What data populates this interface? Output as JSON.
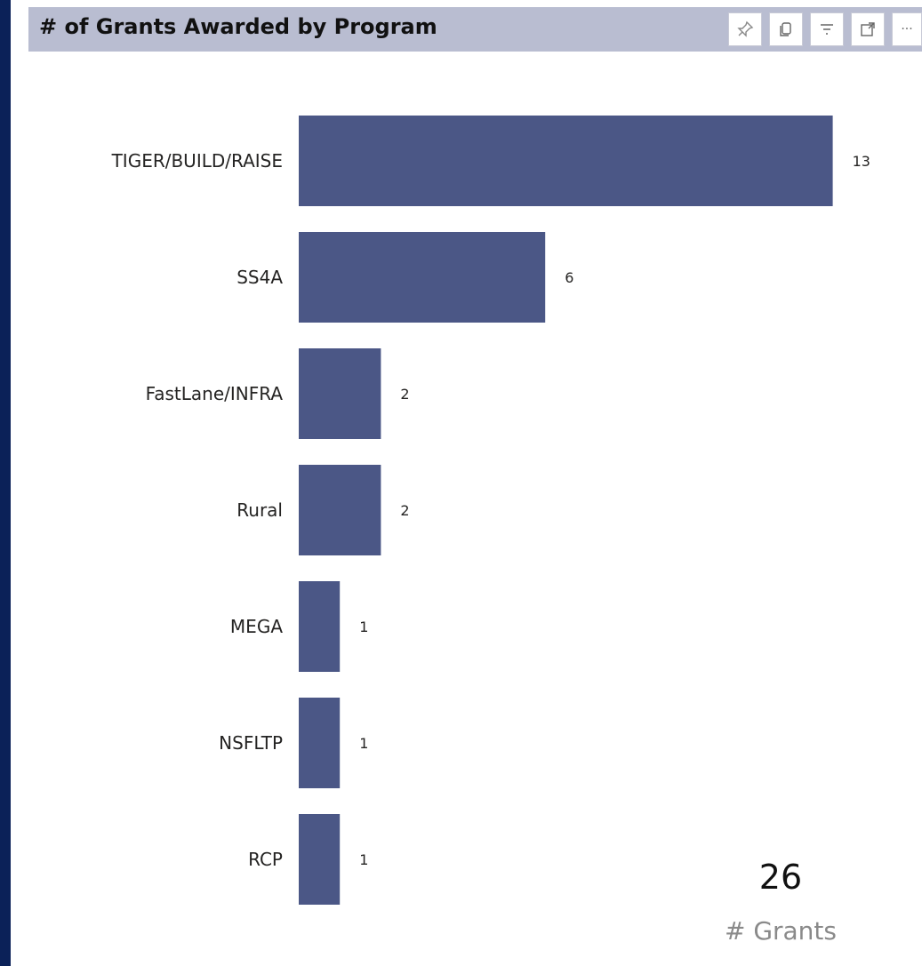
{
  "visual": {
    "title": "# of Grants Awarded by Program",
    "toolbar": [
      {
        "name": "pin-icon"
      },
      {
        "name": "copy-icon"
      },
      {
        "name": "filter-icon"
      },
      {
        "name": "focus-mode-icon"
      },
      {
        "name": "more-options-icon",
        "label": "···"
      }
    ]
  },
  "colors": {
    "bar": "#4b5786",
    "background": "#0b2158",
    "header": "#b9bdd1"
  },
  "chart_data": {
    "type": "bar",
    "orientation": "horizontal",
    "categories": [
      "TIGER/BUILD/RAISE",
      "SS4A",
      "FastLane/INFRA",
      "Rural",
      "MEGA",
      "NSFLTP",
      "RCP"
    ],
    "values": [
      13,
      6,
      2,
      2,
      1,
      1,
      1
    ],
    "data_labels": true,
    "xlim": [
      0,
      13
    ]
  },
  "kpi": {
    "value": "26",
    "label": "# Grants"
  }
}
